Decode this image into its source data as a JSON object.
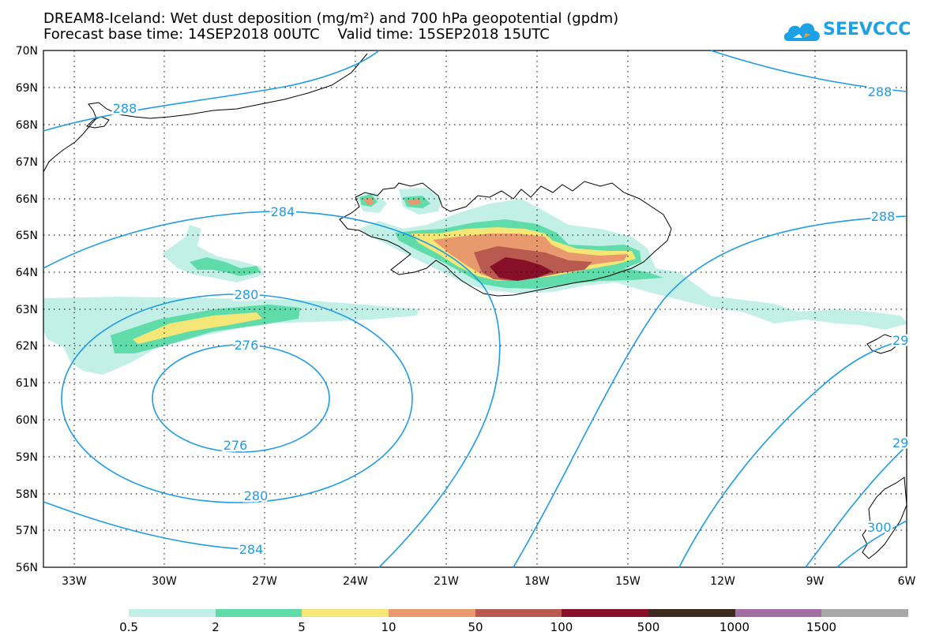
{
  "title_line1": "DREAM8-Iceland: Wet dust deposition (mg/m²) and 700 hPa geopotential (gpdm)",
  "title_line2": "Forecast base time: 14SEP2018 00UTC    Valid time: 15SEP2018 15UTC",
  "logo_text": "SEEVCCC",
  "lat_labels": [
    "70N",
    "69N",
    "68N",
    "67N",
    "66N",
    "65N",
    "64N",
    "63N",
    "62N",
    "61N",
    "60N",
    "59N",
    "58N",
    "57N",
    "56N"
  ],
  "lon_labels": [
    "33W",
    "30W",
    "27W",
    "24W",
    "21W",
    "18W",
    "15W",
    "12W",
    "9W",
    "6W"
  ],
  "contour_labels": [
    "288",
    "288",
    "284",
    "288",
    "280",
    "276",
    "276",
    "280",
    "284",
    "29",
    "29",
    "300"
  ],
  "legend": {
    "labels": [
      "0.5",
      "2",
      "5",
      "10",
      "50",
      "100",
      "500",
      "1000",
      "1500"
    ],
    "colors": [
      "#c2f0e6",
      "#5fdcaa",
      "#f5e678",
      "#e89a6e",
      "#b85a50",
      "#870f28",
      "#3c2a1e",
      "#a06ea0",
      "#a8a8a8"
    ]
  },
  "colors": {
    "contour": "#1e9be6",
    "coast": "#000000",
    "logo": "#1da1e6"
  }
}
